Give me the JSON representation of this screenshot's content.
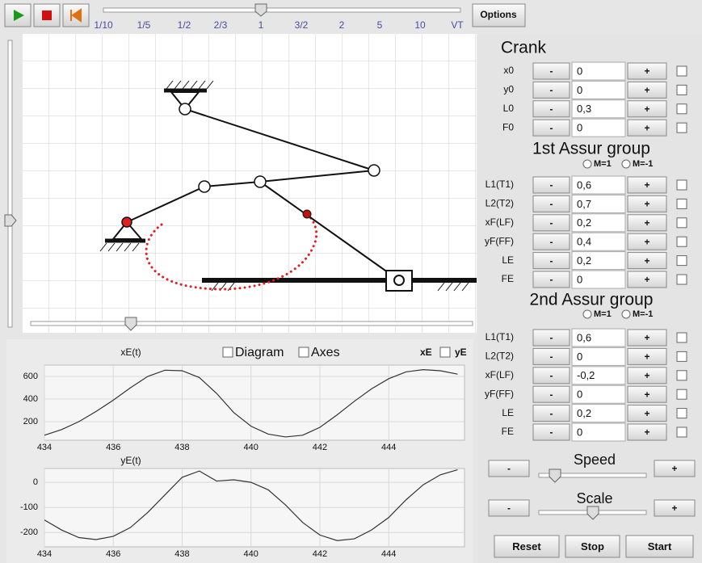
{
  "toolbar": {
    "speed_labels": [
      "1/10",
      "1/5",
      "1/2",
      "2/3",
      "1",
      "3/2",
      "2",
      "5",
      "10",
      "VT"
    ],
    "options": "Options"
  },
  "controls": {
    "minus": "-",
    "plus": "+"
  },
  "groups": [
    {
      "title": "Crank",
      "params": [
        {
          "label": "x0",
          "value": "0"
        },
        {
          "label": "y0",
          "value": "0"
        },
        {
          "label": "L0",
          "value": "0,3"
        },
        {
          "label": "F0",
          "value": "0"
        }
      ]
    },
    {
      "title": "1st Assur group",
      "modes": [
        "M=1",
        "M=-1"
      ],
      "params": [
        {
          "label": "L1(T1)",
          "value": "0,6"
        },
        {
          "label": "L2(T2)",
          "value": "0,7"
        },
        {
          "label": "xF(LF)",
          "value": "0,2"
        },
        {
          "label": "yF(FF)",
          "value": "0,4"
        },
        {
          "label": "LE",
          "value": "0,2"
        },
        {
          "label": "FE",
          "value": "0"
        }
      ]
    },
    {
      "title": "2nd Assur group",
      "modes": [
        "M=1",
        "M=-1"
      ],
      "params": [
        {
          "label": "L1(T1)",
          "value": "0,6"
        },
        {
          "label": "L2(T2)",
          "value": "0"
        },
        {
          "label": "xF(LF)",
          "value": "-0,2"
        },
        {
          "label": "yF(FF)",
          "value": "0"
        },
        {
          "label": "LE",
          "value": "0,2"
        },
        {
          "label": "FE",
          "value": "0"
        }
      ]
    }
  ],
  "speed": "Speed",
  "scale": "Scale",
  "buttons": [
    "Reset",
    "Stop",
    "Start"
  ],
  "plot_options": [
    "Diagram",
    "Axes"
  ],
  "plot_series": [
    "xE",
    "yE"
  ],
  "chart_data": [
    {
      "type": "line",
      "title": "xE(t)",
      "color": "#333333",
      "xlim": [
        434,
        446.2
      ],
      "ylim": [
        36,
        700
      ],
      "xticks": [
        434,
        436,
        438,
        440,
        442,
        444
      ],
      "yticks": [
        200,
        400,
        600
      ],
      "grid": true,
      "x": [
        434,
        434.5,
        435,
        435.5,
        436,
        436.5,
        437,
        437.5,
        438,
        438.5,
        439,
        439.5,
        440,
        440.5,
        441,
        441.5,
        442,
        442.5,
        443,
        443.5,
        444,
        444.5,
        445,
        445.5,
        446
      ],
      "values": [
        80,
        130,
        200,
        290,
        390,
        500,
        600,
        655,
        650,
        590,
        450,
        280,
        160,
        90,
        65,
        80,
        150,
        260,
        380,
        490,
        580,
        640,
        660,
        650,
        620
      ]
    },
    {
      "type": "line",
      "title": "yE(t)",
      "color": "#333333",
      "xlim": [
        434,
        446.2
      ],
      "ylim": [
        -257,
        55
      ],
      "xticks": [
        434,
        436,
        438,
        440,
        442,
        444
      ],
      "yticks": [
        -200,
        -100,
        0
      ],
      "grid": true,
      "x": [
        434,
        434.5,
        435,
        435.5,
        436,
        436.5,
        437,
        437.5,
        438,
        438.5,
        439,
        439.5,
        440,
        440.5,
        441,
        441.5,
        442,
        442.5,
        443,
        443.5,
        444,
        444.5,
        445,
        445.5,
        446
      ],
      "values": [
        -150,
        -190,
        -220,
        -228,
        -215,
        -180,
        -120,
        -50,
        20,
        45,
        5,
        10,
        0,
        -30,
        -90,
        -160,
        -210,
        -232,
        -225,
        -190,
        -140,
        -70,
        -10,
        30,
        50
      ]
    }
  ]
}
